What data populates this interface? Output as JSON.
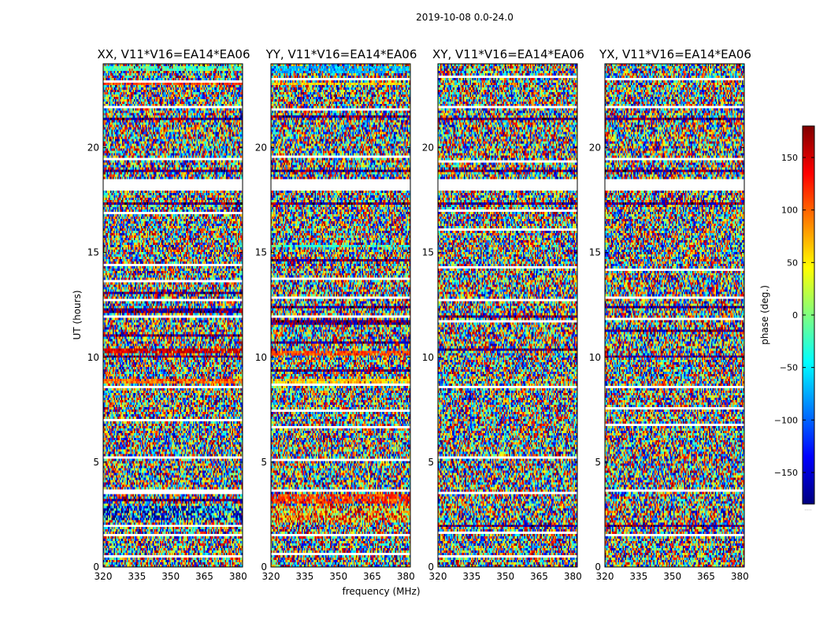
{
  "figure": {
    "suptitle": "2019-10-08 0.0-24.0",
    "xlabel": "frequency (MHz)",
    "ylabel": "UT (hours)"
  },
  "colorbar": {
    "label": "phase (deg.)",
    "range": [
      -180,
      180
    ],
    "ticks": [
      150,
      100,
      50,
      0,
      -50,
      -100,
      -150
    ],
    "tick_labels": [
      "150",
      "100",
      "50",
      "0",
      "−50",
      "−100",
      "−150"
    ],
    "colormap": "jet",
    "colors": [
      "#00007f",
      "#0000ff",
      "#007fff",
      "#00ffff",
      "#7fff7f",
      "#ffff00",
      "#ff7f00",
      "#ff0000",
      "#7f0000"
    ],
    "footnote": "....."
  },
  "chart_data": {
    "type": "heatmap",
    "title": "2019-10-08 0.0-24.0",
    "xlabel": "frequency (MHz)",
    "ylabel": "UT (hours)",
    "xlim": [
      320,
      382
    ],
    "ylim": [
      0,
      24
    ],
    "x_ticks": [
      320,
      335,
      350,
      365,
      380
    ],
    "x_tick_labels": [
      "320",
      "335",
      "350",
      "365",
      "380"
    ],
    "y_ticks": [
      0,
      5,
      10,
      15,
      20
    ],
    "y_tick_labels": [
      "0",
      "5",
      "10",
      "15",
      "20"
    ],
    "value_range": [
      -180,
      180
    ],
    "value_label": "phase (deg.)",
    "flag_color": "#ffffff",
    "panels": [
      {
        "title": "XX, V11*V16=EA14*EA06",
        "blank_bands": [
          [
            0.5,
            0.6
          ],
          [
            1.5,
            1.62
          ],
          [
            1.95,
            2.05
          ],
          [
            3.5,
            3.72
          ],
          [
            5.2,
            5.3
          ],
          [
            7.0,
            7.12
          ],
          [
            8.5,
            8.6
          ],
          [
            11.85,
            11.95
          ],
          [
            12.7,
            12.8
          ],
          [
            13.55,
            13.65
          ],
          [
            14.35,
            14.45
          ],
          [
            16.1,
            16.2
          ],
          [
            16.85,
            16.95
          ],
          [
            17.9,
            18.5
          ],
          [
            19.4,
            19.48
          ],
          [
            21.85,
            21.95
          ],
          [
            22.4,
            22.48
          ],
          [
            23.1,
            23.22
          ]
        ],
        "dark_bands": [
          [
            3.1,
            3.3
          ],
          [
            10.0,
            10.12
          ],
          [
            11.0,
            11.12
          ],
          [
            12.1,
            12.3
          ],
          [
            13.0,
            13.12
          ],
          [
            17.3,
            17.42
          ],
          [
            18.8,
            18.92
          ],
          [
            21.3,
            21.42
          ],
          [
            23.5,
            23.6
          ]
        ],
        "colored_bands": [
          {
            "range": [
              2.2,
              2.9
            ],
            "center": 0.15,
            "spread": 0.45
          },
          {
            "range": [
              8.7,
              8.95
            ],
            "center": 0.78,
            "spread": 0.08
          },
          {
            "range": [
              10.2,
              10.4
            ],
            "center": 0.92,
            "spread": 0.06
          },
          {
            "range": [
              15.2,
              15.3
            ],
            "center": 0.7,
            "spread": 0.1
          },
          {
            "range": [
              23.0,
              23.1
            ],
            "center": 0.82,
            "spread": 0.06
          },
          {
            "range": [
              23.7,
              23.9
            ],
            "center": 0.45,
            "spread": 0.08
          }
        ]
      },
      {
        "title": "YY, V11*V16=EA14*EA06",
        "blank_bands": [
          [
            0.55,
            0.65
          ],
          [
            1.5,
            1.6
          ],
          [
            3.6,
            3.75
          ],
          [
            5.1,
            5.2
          ],
          [
            6.6,
            6.7
          ],
          [
            7.4,
            7.5
          ],
          [
            8.6,
            8.7
          ],
          [
            11.85,
            11.95
          ],
          [
            12.8,
            12.9
          ],
          [
            13.7,
            13.8
          ],
          [
            16.1,
            16.2
          ],
          [
            17.9,
            18.5
          ],
          [
            19.5,
            19.58
          ],
          [
            21.8,
            21.9
          ],
          [
            22.5,
            22.58
          ],
          [
            23.2,
            23.3
          ]
        ],
        "dark_bands": [
          [
            9.3,
            9.42
          ],
          [
            10.6,
            10.72
          ],
          [
            11.6,
            11.72
          ],
          [
            12.3,
            12.42
          ],
          [
            14.6,
            14.72
          ],
          [
            17.3,
            17.4
          ],
          [
            18.8,
            18.9
          ],
          [
            21.4,
            21.52
          ]
        ],
        "colored_bands": [
          {
            "range": [
              2.1,
              2.9
            ],
            "center": 0.72,
            "spread": 0.3
          },
          {
            "range": [
              3.0,
              3.5
            ],
            "center": 0.82,
            "spread": 0.1
          },
          {
            "range": [
              8.75,
              8.95
            ],
            "center": 0.68,
            "spread": 0.06
          },
          {
            "range": [
              10.1,
              10.3
            ],
            "center": 0.8,
            "spread": 0.06
          },
          {
            "range": [
              15.2,
              15.35
            ],
            "center": 0.42,
            "spread": 0.08
          },
          {
            "range": [
              23.0,
              23.15
            ],
            "center": 0.66,
            "spread": 0.06
          },
          {
            "range": [
              23.6,
              23.9
            ],
            "center": 0.3,
            "spread": 0.08
          }
        ]
      },
      {
        "title": "XY, V11*V16=EA14*EA06",
        "blank_bands": [
          [
            0.5,
            0.6
          ],
          [
            1.55,
            1.65
          ],
          [
            3.5,
            3.62
          ],
          [
            5.2,
            5.3
          ],
          [
            6.9,
            7.0
          ],
          [
            8.5,
            8.6
          ],
          [
            11.7,
            11.8
          ],
          [
            12.7,
            12.8
          ],
          [
            14.2,
            14.3
          ],
          [
            16.0,
            16.12
          ],
          [
            16.9,
            17.0
          ],
          [
            17.9,
            18.5
          ],
          [
            19.3,
            19.38
          ],
          [
            21.9,
            22.0
          ],
          [
            22.6,
            22.68
          ],
          [
            23.3,
            23.4
          ]
        ],
        "dark_bands": [
          [
            1.9,
            2.0
          ],
          [
            3.2,
            3.3
          ],
          [
            10.3,
            10.42
          ],
          [
            11.9,
            12.0
          ],
          [
            17.3,
            17.42
          ],
          [
            18.8,
            18.9
          ],
          [
            21.3,
            21.4
          ],
          [
            23.5,
            23.6
          ]
        ],
        "colored_bands": []
      },
      {
        "title": "YX, V11*V16=EA14*EA06",
        "blank_bands": [
          [
            0.4,
            0.5
          ],
          [
            1.5,
            1.62
          ],
          [
            3.6,
            3.72
          ],
          [
            5.0,
            5.1
          ],
          [
            6.7,
            6.8
          ],
          [
            7.5,
            7.6
          ],
          [
            8.5,
            8.6
          ],
          [
            11.8,
            11.9
          ],
          [
            12.8,
            12.9
          ],
          [
            14.1,
            14.2
          ],
          [
            16.1,
            16.2
          ],
          [
            17.9,
            18.5
          ],
          [
            19.4,
            19.48
          ],
          [
            21.9,
            22.0
          ],
          [
            22.5,
            22.58
          ],
          [
            23.2,
            23.3
          ]
        ],
        "dark_bands": [
          [
            1.9,
            2.0
          ],
          [
            3.2,
            3.3
          ],
          [
            10.0,
            10.12
          ],
          [
            11.2,
            11.3
          ],
          [
            12.3,
            12.42
          ],
          [
            17.3,
            17.4
          ],
          [
            18.8,
            18.9
          ],
          [
            21.3,
            21.4
          ],
          [
            23.5,
            23.6
          ]
        ],
        "colored_bands": []
      }
    ]
  }
}
